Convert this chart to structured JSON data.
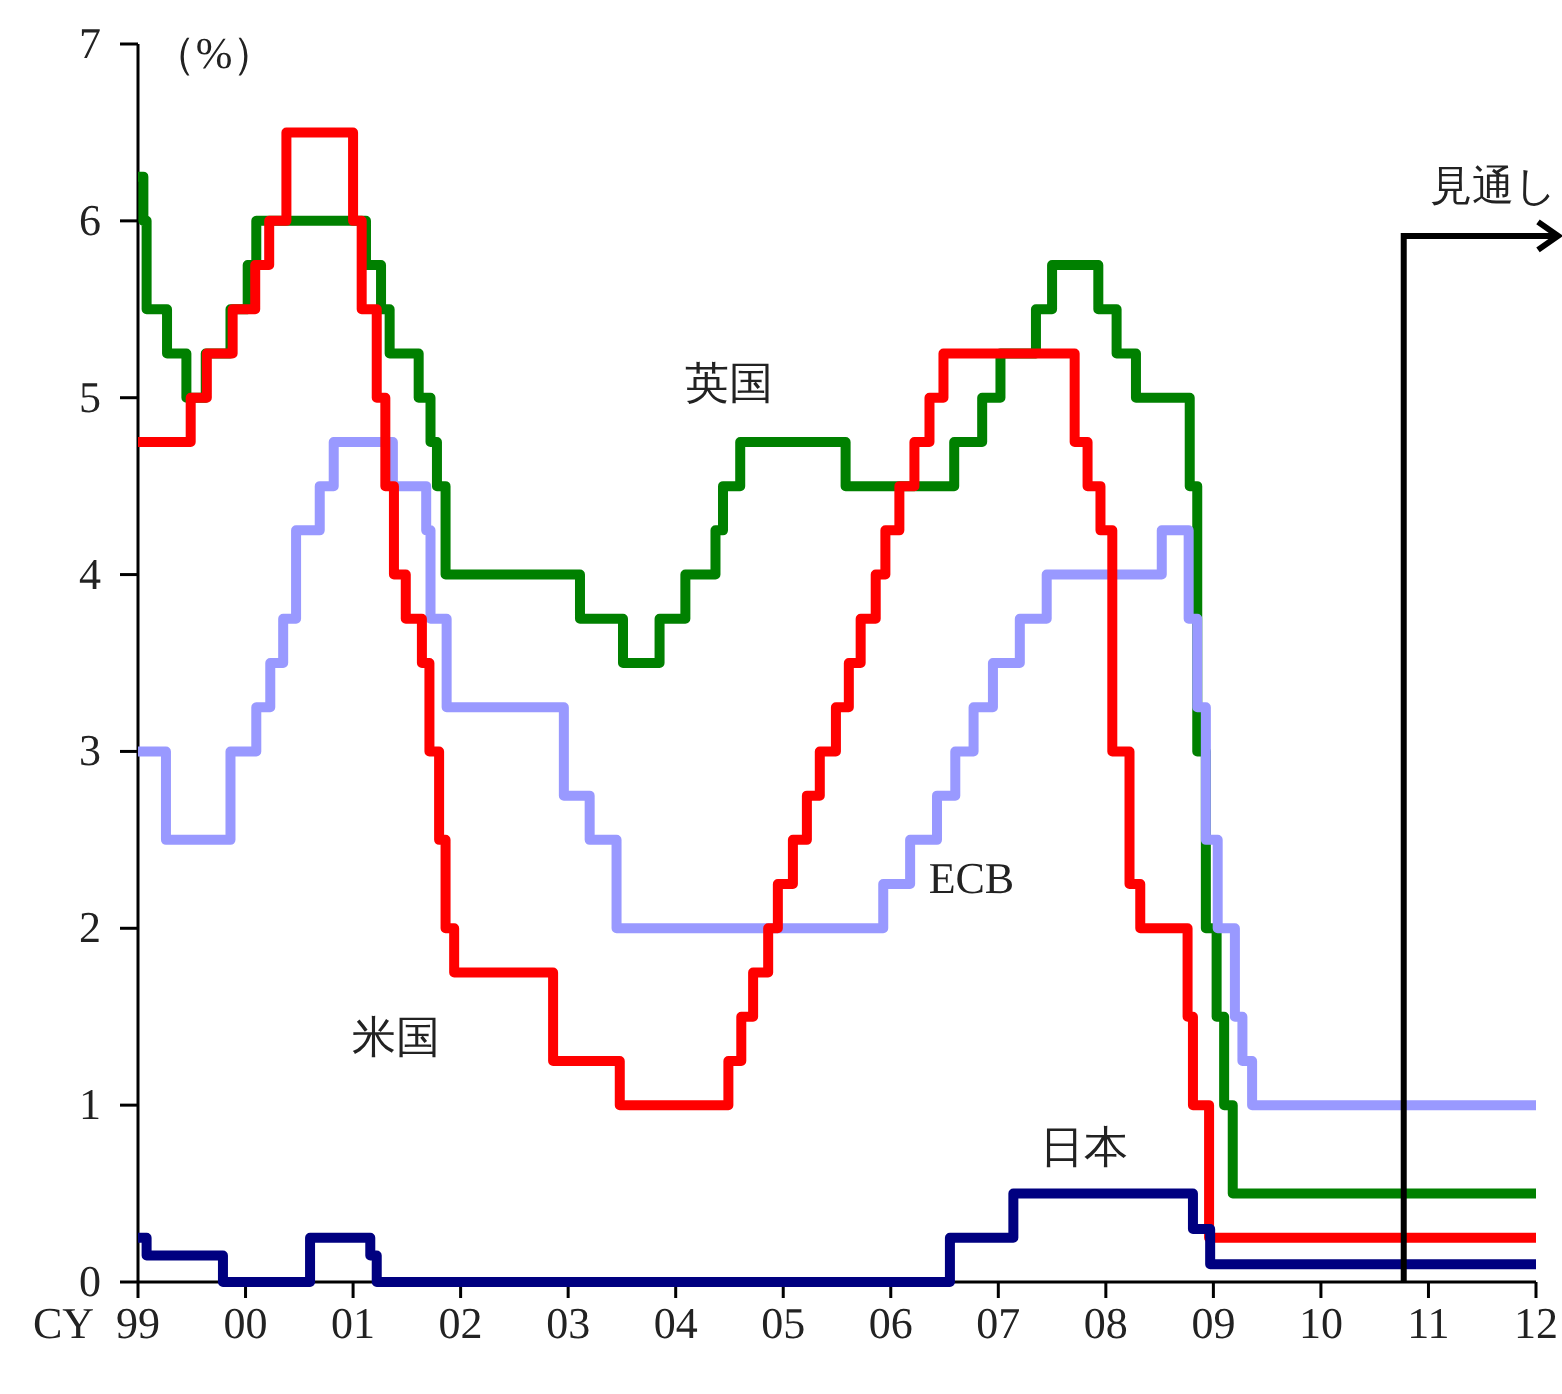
{
  "chart_data": {
    "type": "step",
    "xlabel": "CY",
    "ylabel": "（%）",
    "xlim": [
      1999,
      2012
    ],
    "ylim": [
      0,
      7
    ],
    "xticks": [
      {
        "value": 1999,
        "label": "99"
      },
      {
        "value": 2000,
        "label": "00"
      },
      {
        "value": 2001,
        "label": "01"
      },
      {
        "value": 2002,
        "label": "02"
      },
      {
        "value": 2003,
        "label": "03"
      },
      {
        "value": 2004,
        "label": "04"
      },
      {
        "value": 2005,
        "label": "05"
      },
      {
        "value": 2006,
        "label": "06"
      },
      {
        "value": 2007,
        "label": "07"
      },
      {
        "value": 2008,
        "label": "08"
      },
      {
        "value": 2009,
        "label": "09"
      },
      {
        "value": 2010,
        "label": "10"
      },
      {
        "value": 2011,
        "label": "11"
      },
      {
        "value": 2012,
        "label": "12"
      }
    ],
    "yticks": [
      0,
      1,
      2,
      3,
      4,
      5,
      6,
      7
    ],
    "legend": false,
    "grid": false,
    "series": [
      {
        "name": "英国",
        "color": "#008000",
        "x": [
          1999.0,
          1999.05,
          1999.08,
          1999.27,
          1999.45,
          1999.63,
          1999.86,
          2000.02,
          2000.1,
          2001.12,
          2001.26,
          2001.34,
          2001.61,
          2001.72,
          2001.78,
          2001.86,
          2003.11,
          2003.51,
          2003.85,
          2004.09,
          2004.37,
          2004.44,
          2004.6,
          2005.58,
          2006.59,
          2006.85,
          2007.02,
          2007.35,
          2007.5,
          2007.93,
          2008.1,
          2008.28,
          2008.78,
          2008.85,
          2008.93,
          2009.03,
          2009.1,
          2009.18,
          2012.0
        ],
        "values": [
          6.25,
          6.0,
          5.5,
          5.25,
          5.0,
          5.25,
          5.5,
          5.75,
          6.0,
          5.75,
          5.5,
          5.25,
          5.0,
          4.75,
          4.5,
          4.0,
          3.75,
          3.5,
          3.75,
          4.0,
          4.25,
          4.5,
          4.75,
          4.5,
          4.75,
          5.0,
          5.25,
          5.5,
          5.75,
          5.5,
          5.25,
          5.0,
          4.5,
          3.0,
          2.0,
          1.5,
          1.0,
          0.5,
          0.5
        ]
      },
      {
        "name": "ECB",
        "color": "#9999ff",
        "x": [
          1999.0,
          1999.26,
          1999.86,
          2000.1,
          2000.23,
          2000.35,
          2000.47,
          2000.69,
          2000.82,
          2001.37,
          2001.68,
          2001.72,
          2001.87,
          2002.96,
          2003.2,
          2003.45,
          2005.93,
          2006.18,
          2006.43,
          2006.6,
          2006.77,
          2006.95,
          2007.2,
          2007.45,
          2008.52,
          2008.77,
          2008.85,
          2008.93,
          2009.04,
          2009.2,
          2009.27,
          2009.36,
          2012.0
        ],
        "values": [
          3.0,
          2.5,
          3.0,
          3.25,
          3.5,
          3.75,
          4.25,
          4.5,
          4.75,
          4.5,
          4.25,
          3.75,
          3.25,
          2.75,
          2.5,
          2.0,
          2.25,
          2.5,
          2.75,
          3.0,
          3.25,
          3.5,
          3.75,
          4.0,
          4.25,
          3.75,
          3.25,
          2.5,
          2.0,
          1.5,
          1.25,
          1.0,
          1.0
        ]
      },
      {
        "name": "米国",
        "color": "#ff0000",
        "x": [
          1999.0,
          1999.49,
          1999.64,
          1999.88,
          2000.09,
          2000.22,
          2000.38,
          2001.0,
          2001.08,
          2001.22,
          2001.3,
          2001.38,
          2001.49,
          2001.64,
          2001.71,
          2001.8,
          2001.86,
          2001.94,
          2002.86,
          2003.48,
          2004.49,
          2004.61,
          2004.72,
          2004.86,
          2004.95,
          2005.09,
          2005.22,
          2005.34,
          2005.49,
          2005.61,
          2005.72,
          2005.86,
          2005.95,
          2006.08,
          2006.22,
          2006.36,
          2006.49,
          2007.71,
          2007.83,
          2007.95,
          2008.06,
          2008.22,
          2008.32,
          2008.76,
          2008.81,
          2008.96,
          2012.0
        ],
        "values": [
          4.75,
          5.0,
          5.25,
          5.5,
          5.75,
          6.0,
          6.5,
          6.0,
          5.5,
          5.0,
          4.5,
          4.0,
          3.75,
          3.5,
          3.0,
          2.5,
          2.0,
          1.75,
          1.25,
          1.0,
          1.25,
          1.5,
          1.75,
          2.0,
          2.25,
          2.5,
          2.75,
          3.0,
          3.25,
          3.5,
          3.75,
          4.0,
          4.25,
          4.5,
          4.75,
          5.0,
          5.25,
          4.75,
          4.5,
          4.25,
          3.0,
          2.25,
          2.0,
          1.5,
          1.0,
          0.25,
          0.25
        ]
      },
      {
        "name": "日本",
        "color": "#000080",
        "x": [
          1999.0,
          1999.08,
          1999.79,
          2000.6,
          2001.16,
          2001.22,
          2006.55,
          2007.14,
          2008.81,
          2008.97,
          2012.0
        ],
        "values": [
          0.25,
          0.15,
          0.0,
          0.25,
          0.15,
          0.0,
          0.25,
          0.5,
          0.3,
          0.1,
          0.1
        ]
      }
    ],
    "ref_lines": [
      {
        "axis": "x",
        "value": 2010.77,
        "label": "見通し",
        "color": "#000000"
      }
    ]
  }
}
